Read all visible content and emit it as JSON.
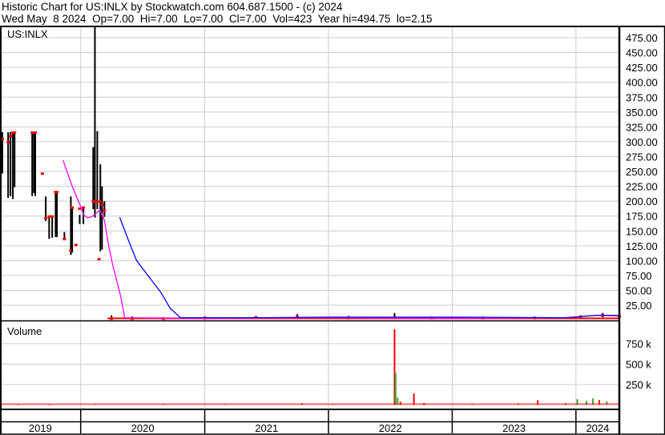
{
  "header": {
    "title": "Historic Chart for US:INLX by Stockwatch.com 604.687.1500 - (c) 2024",
    "quote_line": "Wed May  8 2024  Op=7.00  Hi=7.00  Lo=7.00  Cl=7.00  Vol=423  Year hi=494.75  lo=2.15"
  },
  "chart_data": [
    {
      "type": "ohlc",
      "panel": "price",
      "symbol_label": "US:INLX",
      "ylim": [
        0,
        500
      ],
      "y_ticks": [
        "25.00",
        "50.00",
        "75.00",
        "100.00",
        "125.00",
        "150.00",
        "175.00",
        "200.00",
        "225.00",
        "250.00",
        "275.00",
        "300.00",
        "325.00",
        "350.00",
        "375.00",
        "400.00",
        "425.00",
        "450.00",
        "475.00"
      ],
      "x_range": [
        "2019-05-08",
        "2024-05-08"
      ],
      "x_ticks": [
        "2019",
        "2020",
        "2021",
        "2022",
        "2023",
        "2024"
      ],
      "grid": true,
      "colors": {
        "bar": "#000000",
        "close_tick": "#ff0000",
        "ma_short": "#ff00ff",
        "ma_long": "#0000ff"
      },
      "bars": [
        {
          "date": "2019-05-15",
          "high": 316,
          "low": 248,
          "close": 305
        },
        {
          "date": "2019-06-01",
          "high": 316,
          "low": 207,
          "close": 300
        },
        {
          "date": "2019-06-08",
          "high": 316,
          "low": 210,
          "close": 310
        },
        {
          "date": "2019-06-15",
          "high": 316,
          "low": 205,
          "close": 316
        },
        {
          "date": "2019-06-20",
          "high": 316,
          "low": 225,
          "close": 316
        },
        {
          "date": "2019-08-11",
          "high": 316,
          "low": 210,
          "close": 316
        },
        {
          "date": "2019-08-16",
          "high": 316,
          "low": 215,
          "close": 316
        },
        {
          "date": "2019-08-20",
          "high": 316,
          "low": 210,
          "close": 316
        },
        {
          "date": "2019-09-10",
          "high": 247,
          "low": 247,
          "close": 247
        },
        {
          "date": "2019-09-20",
          "high": 208,
          "low": 168,
          "close": 172
        },
        {
          "date": "2019-09-30",
          "high": 175,
          "low": 138,
          "close": 175
        },
        {
          "date": "2019-10-09",
          "high": 175,
          "low": 140,
          "close": 175
        },
        {
          "date": "2019-10-19",
          "high": 216,
          "low": 141,
          "close": 216
        },
        {
          "date": "2019-10-23",
          "high": 216,
          "low": 141,
          "close": 216
        },
        {
          "date": "2019-11-14",
          "high": 148,
          "low": 137,
          "close": 137
        },
        {
          "date": "2019-12-03",
          "high": 208,
          "low": 111,
          "close": 118
        },
        {
          "date": "2019-12-07",
          "high": 190,
          "low": 115,
          "close": 190
        },
        {
          "date": "2019-12-18",
          "high": 127,
          "low": 127,
          "close": 127
        },
        {
          "date": "2019-12-29",
          "high": 177,
          "low": 163,
          "close": 188
        },
        {
          "date": "2020-01-09",
          "high": 190,
          "low": 163,
          "close": 190
        },
        {
          "date": "2020-02-07",
          "high": 291,
          "low": 188,
          "close": 200
        },
        {
          "date": "2020-02-12",
          "high": 494.75,
          "low": 174,
          "close": 200
        },
        {
          "date": "2020-02-19",
          "high": 318,
          "low": 188,
          "close": 200
        },
        {
          "date": "2020-02-24",
          "high": 103,
          "low": 103,
          "close": 103
        },
        {
          "date": "2020-02-28",
          "high": 262,
          "low": 117,
          "close": 200
        },
        {
          "date": "2020-03-04",
          "high": 225,
          "low": 120,
          "close": 195
        },
        {
          "date": "2020-03-11",
          "high": 200,
          "low": 175,
          "close": 185
        },
        {
          "date": "2020-04-01",
          "high": 8,
          "low": 2.15,
          "close": 3
        },
        {
          "date": "2020-06-01",
          "high": 6,
          "low": 2.5,
          "close": 3
        },
        {
          "date": "2020-09-01",
          "high": 5,
          "low": 2.5,
          "close": 3
        },
        {
          "date": "2021-01-01",
          "high": 6,
          "low": 3,
          "close": 4
        },
        {
          "date": "2021-06-01",
          "high": 7,
          "low": 4,
          "close": 5
        },
        {
          "date": "2021-10-01",
          "high": 10,
          "low": 4,
          "close": 6
        },
        {
          "date": "2022-03-01",
          "high": 7,
          "low": 3,
          "close": 4
        },
        {
          "date": "2022-07-15",
          "high": 12,
          "low": 3,
          "close": 5
        },
        {
          "date": "2022-11-01",
          "high": 6,
          "low": 3,
          "close": 4
        },
        {
          "date": "2023-04-01",
          "high": 6,
          "low": 3,
          "close": 4
        },
        {
          "date": "2023-09-01",
          "high": 6,
          "low": 3,
          "close": 4
        },
        {
          "date": "2024-01-15",
          "high": 8,
          "low": 4,
          "close": 6
        },
        {
          "date": "2024-03-20",
          "high": 12,
          "low": 6,
          "close": 9
        },
        {
          "date": "2024-05-08",
          "high": 7,
          "low": 7,
          "close": 7
        }
      ],
      "ma_short": [
        {
          "date": "2019-11-10",
          "value": 269
        },
        {
          "date": "2019-12-05",
          "value": 228
        },
        {
          "date": "2019-12-29",
          "value": 195
        },
        {
          "date": "2020-01-10",
          "value": 177
        },
        {
          "date": "2020-01-22",
          "value": 172
        },
        {
          "date": "2020-02-03",
          "value": 174
        },
        {
          "date": "2020-02-27",
          "value": 185
        },
        {
          "date": "2020-03-11",
          "value": 168
        },
        {
          "date": "2020-03-23",
          "value": 127
        },
        {
          "date": "2020-04-04",
          "value": 94
        },
        {
          "date": "2020-04-16",
          "value": 67
        },
        {
          "date": "2020-04-28",
          "value": 40
        },
        {
          "date": "2020-05-10",
          "value": 4
        },
        {
          "date": "2021-01-01",
          "value": 3
        },
        {
          "date": "2022-01-01",
          "value": 4
        },
        {
          "date": "2023-01-01",
          "value": 3
        },
        {
          "date": "2023-12-01",
          "value": 4
        },
        {
          "date": "2024-03-01",
          "value": 8
        },
        {
          "date": "2024-05-08",
          "value": 7
        }
      ],
      "ma_long": [
        {
          "date": "2020-04-25",
          "value": 173
        },
        {
          "date": "2020-05-21",
          "value": 134
        },
        {
          "date": "2020-06-14",
          "value": 100
        },
        {
          "date": "2020-07-20",
          "value": 73
        },
        {
          "date": "2020-08-24",
          "value": 47
        },
        {
          "date": "2020-09-21",
          "value": 20
        },
        {
          "date": "2020-10-21",
          "value": 4
        },
        {
          "date": "2021-06-01",
          "value": 4
        },
        {
          "date": "2022-01-01",
          "value": 5
        },
        {
          "date": "2023-01-01",
          "value": 5
        },
        {
          "date": "2023-12-01",
          "value": 4
        },
        {
          "date": "2024-03-01",
          "value": 8
        },
        {
          "date": "2024-05-08",
          "value": 8
        }
      ]
    },
    {
      "type": "bar",
      "panel": "volume",
      "title": "Volume",
      "ylim": [
        0,
        1000000
      ],
      "y_ticks": [
        "250 k",
        "500 k",
        "750 k"
      ],
      "colors": {
        "up": "#33aa33",
        "down": "#ff0000"
      },
      "values": [
        {
          "date": "2019-07-01",
          "volume": 8000,
          "dir": "down"
        },
        {
          "date": "2019-10-01",
          "volume": 6000,
          "dir": "down"
        },
        {
          "date": "2020-02-12",
          "volume": 12000,
          "dir": "up"
        },
        {
          "date": "2020-09-01",
          "volume": 15000,
          "dir": "up"
        },
        {
          "date": "2021-03-01",
          "volume": 10000,
          "dir": "down"
        },
        {
          "date": "2021-10-15",
          "volume": 25000,
          "dir": "up"
        },
        {
          "date": "2022-01-15",
          "volume": 15000,
          "dir": "up"
        },
        {
          "date": "2022-07-15",
          "volume": 926000,
          "dir": "down"
        },
        {
          "date": "2022-07-18",
          "volume": 387000,
          "dir": "up"
        },
        {
          "date": "2022-07-24",
          "volume": 90000,
          "dir": "up"
        },
        {
          "date": "2022-08-01",
          "volume": 40000,
          "dir": "down"
        },
        {
          "date": "2022-09-10",
          "volume": 140000,
          "dir": "down"
        },
        {
          "date": "2022-10-10",
          "volume": 25000,
          "dir": "down"
        },
        {
          "date": "2023-03-01",
          "volume": 15000,
          "dir": "up"
        },
        {
          "date": "2023-07-15",
          "volume": 20000,
          "dir": "up"
        },
        {
          "date": "2023-09-10",
          "volume": 55000,
          "dir": "down"
        },
        {
          "date": "2023-12-01",
          "volume": 25000,
          "dir": "up"
        },
        {
          "date": "2024-01-05",
          "volume": 70000,
          "dir": "up"
        },
        {
          "date": "2024-02-01",
          "volume": 50000,
          "dir": "up"
        },
        {
          "date": "2024-02-20",
          "volume": 80000,
          "dir": "up"
        },
        {
          "date": "2024-03-10",
          "volume": 60000,
          "dir": "down"
        },
        {
          "date": "2024-04-01",
          "volume": 45000,
          "dir": "up"
        },
        {
          "date": "2024-05-08",
          "volume": 423,
          "dir": "up"
        }
      ]
    }
  ]
}
